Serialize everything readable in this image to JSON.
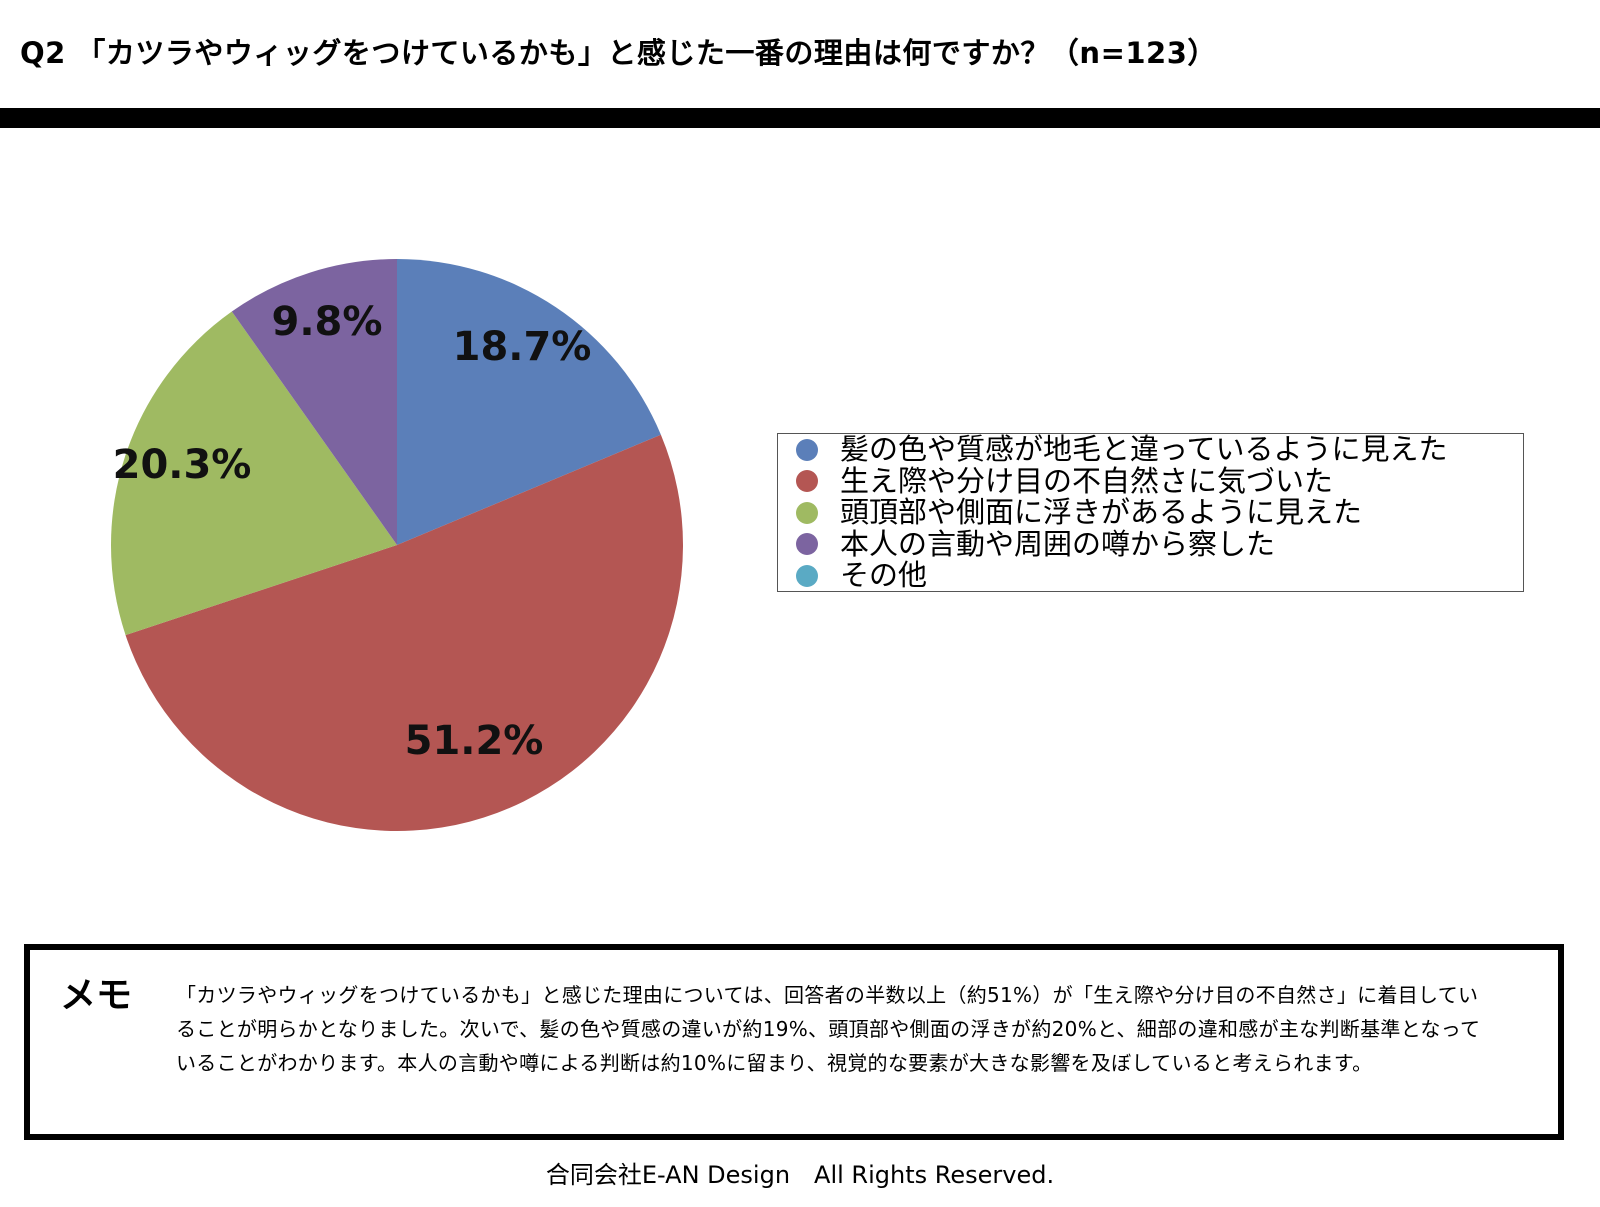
{
  "header": {
    "title": "Q2 「カツラやウィッグをつけているかも」と感じた一番の理由は何ですか？（n=123）"
  },
  "chart_data": {
    "type": "pie",
    "categories": [
      "髪の色や質感が地毛と違っているように見えた",
      "生え際や分け目の不自然さに気づいた",
      "頭頂部や側面に浮きがあるように見えた",
      "本人の言動や周囲の噂から察した",
      "その他"
    ],
    "values": [
      18.7,
      51.2,
      20.3,
      9.8,
      0
    ],
    "labels": [
      "18.7%",
      "51.2%",
      "20.3%",
      "9.8%",
      ""
    ],
    "colors": [
      "#5b7fb9",
      "#b45653",
      "#9fba62",
      "#7c64a0",
      "#5aaac4"
    ],
    "legend_position": "right"
  },
  "memo": {
    "title": "メモ",
    "text": "「カツラやウィッグをつけているかも」と感じた理由については、回答者の半数以上（約51%）が「生え際や分け目の不自然さ」に着目していることが明らかとなりました。次いで、髪の色や質感の違いが約19%、頭頂部や側面の浮きが約20%と、細部の違和感が主な判断基準となっていることがわかります。本人の言動や噂による判断は約10%に留まり、視覚的な要素が大きな影響を及ぼしていると考えられます。"
  },
  "footer": {
    "text": "合同会社E-AN Design　All Rights Reserved."
  }
}
